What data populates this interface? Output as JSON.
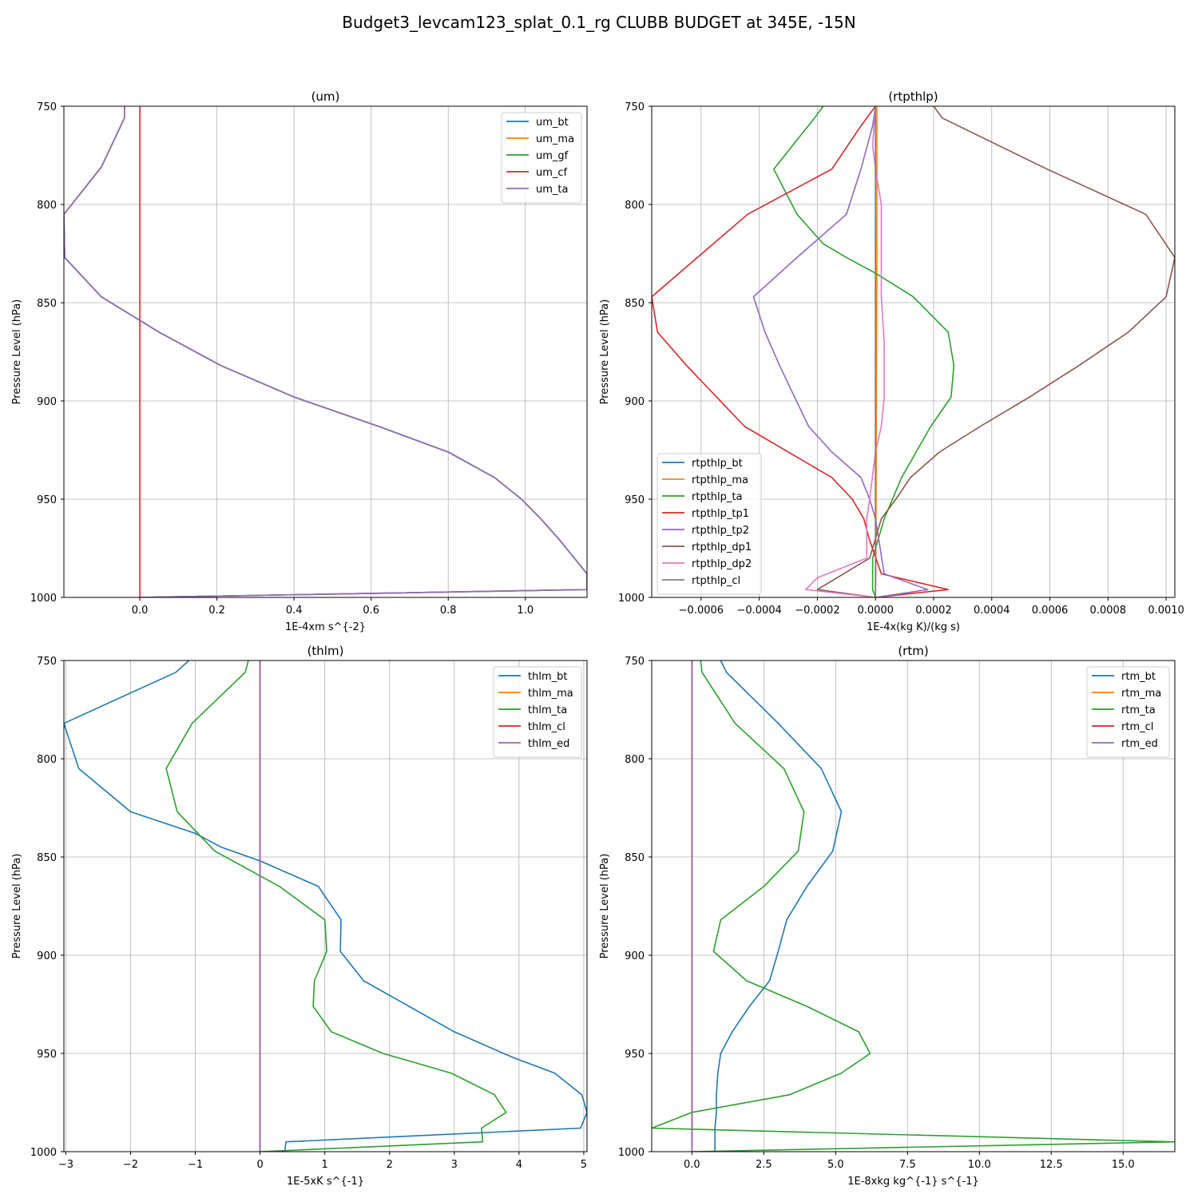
{
  "figure_title": "Budget3_levcam123_splat_0.1_rg CLUBB BUDGET at 345E, -15N",
  "colors": {
    "blue": "#1f77b4",
    "orange": "#ff7f0e",
    "green": "#2ca02c",
    "red": "#d62728",
    "purple": "#9467bd",
    "brown": "#8c564b",
    "pink": "#e377c2",
    "gray": "#7f7f7f"
  },
  "chart_data": [
    {
      "type": "line",
      "title": "(um)",
      "xlabel": "1E-4xm s^{-2}",
      "ylabel": "Pressure Level (hPa)",
      "xlim": [
        -0.197,
        1.16
      ],
      "ylim": [
        1000,
        750
      ],
      "xticks": [
        0.0,
        0.2,
        0.4,
        0.6,
        0.8,
        1.0
      ],
      "xtick_labels": [
        "0.0",
        "0.2",
        "0.4",
        "0.6",
        "0.8",
        "1.0"
      ],
      "yticks": [
        750,
        800,
        850,
        900,
        950,
        1000
      ],
      "ytick_labels": [
        "750",
        "800",
        "850",
        "900",
        "950",
        "1000"
      ],
      "grid": true,
      "legend_position": "upper right",
      "series": [
        {
          "name": "um_bt",
          "color": "#1f77b4",
          "x": [
            -0.04,
            -0.04,
            -0.1,
            -0.197,
            -0.195,
            -0.1,
            0.05,
            0.21,
            0.4,
            0.62,
            0.8,
            0.92,
            0.99,
            1.04,
            1.09,
            1.16,
            1.16,
            0.0
          ],
          "y": [
            750,
            756,
            781,
            805,
            827,
            847,
            865,
            882,
            898,
            913,
            926,
            939,
            950,
            960,
            971,
            988,
            996,
            1000
          ]
        },
        {
          "name": "um_ma",
          "color": "#ff7f0e",
          "x": [
            -0.04,
            -0.04,
            -0.1,
            -0.197,
            -0.195,
            -0.1,
            0.05,
            0.21,
            0.4,
            0.62,
            0.8,
            0.92,
            0.99,
            1.04,
            1.09,
            1.16,
            1.16,
            0.0
          ],
          "y": [
            750,
            756,
            781,
            805,
            827,
            847,
            865,
            882,
            898,
            913,
            926,
            939,
            950,
            960,
            971,
            988,
            996,
            1000
          ]
        },
        {
          "name": "um_gf",
          "color": "#2ca02c",
          "x": [
            -0.04,
            -0.04,
            -0.1,
            -0.197,
            -0.195,
            -0.1,
            0.05,
            0.21,
            0.4,
            0.62,
            0.8,
            0.92,
            0.99,
            1.04,
            1.09,
            1.16,
            1.16,
            0.0
          ],
          "y": [
            750,
            756,
            781,
            805,
            827,
            847,
            865,
            882,
            898,
            913,
            926,
            939,
            950,
            960,
            971,
            988,
            996,
            1000
          ]
        },
        {
          "name": "um_cf",
          "color": "#d62728",
          "x": [
            0.0,
            0.0
          ],
          "y": [
            750,
            1000
          ]
        },
        {
          "name": "um_ta",
          "color": "#9467bd",
          "x": [
            -0.04,
            -0.04,
            -0.1,
            -0.197,
            -0.195,
            -0.1,
            0.05,
            0.21,
            0.4,
            0.62,
            0.8,
            0.92,
            0.99,
            1.04,
            1.09,
            1.16,
            1.16,
            0.0
          ],
          "y": [
            750,
            756,
            781,
            805,
            827,
            847,
            865,
            882,
            898,
            913,
            926,
            939,
            950,
            960,
            971,
            988,
            996,
            1000
          ]
        }
      ]
    },
    {
      "type": "line",
      "title": "(rtpthlp)",
      "xlabel": "1E-4x(kg K)/(kg s)",
      "ylabel": "Pressure Level (hPa)",
      "xlim": [
        -0.00077,
        0.00103
      ],
      "ylim": [
        1000,
        750
      ],
      "xticks": [
        -0.0006,
        -0.0004,
        -0.0002,
        0.0,
        0.0002,
        0.0004,
        0.0006,
        0.0008,
        0.001
      ],
      "xtick_labels": [
        "−0.0006",
        "−0.0004",
        "−0.0002",
        "0.0000",
        "0.0002",
        "0.0004",
        "0.0006",
        "0.0008",
        "0.0010"
      ],
      "yticks": [
        750,
        800,
        850,
        900,
        950,
        1000
      ],
      "ytick_labels": [
        "750",
        "800",
        "850",
        "900",
        "950",
        "1000"
      ],
      "grid": true,
      "legend_position": "lower left",
      "series": [
        {
          "name": "rtpthlp_bt",
          "color": "#1f77b4",
          "x": [
            0.0,
            0.0,
            0.0,
            0.0,
            0.0,
            0.0,
            0.0
          ],
          "y": [
            750,
            800,
            850,
            900,
            950,
            990,
            1000
          ]
        },
        {
          "name": "rtpthlp_ma",
          "color": "#ff7f0e",
          "x": [
            5e-06,
            5e-06,
            4e-06,
            3e-06,
            2e-06,
            1e-06,
            0.0
          ],
          "y": [
            750,
            800,
            850,
            900,
            950,
            990,
            1000
          ]
        },
        {
          "name": "rtpthlp_ta",
          "color": "#2ca02c",
          "x": [
            -0.00018,
            -0.00021,
            -0.00035,
            -0.00027,
            -0.00018,
            -0.0001,
            0.0,
            0.00013,
            0.00025,
            0.00027,
            0.00026,
            0.00019,
            9e-05,
            3e-05,
            -1e-05,
            -1e-05,
            0.0
          ],
          "y": [
            750,
            756,
            782,
            805,
            820,
            827,
            835,
            847,
            865,
            882,
            898,
            913,
            939,
            960,
            980,
            996,
            1000
          ]
        },
        {
          "name": "rtpthlp_tp1",
          "color": "#d62728",
          "x": [
            0.0,
            -5e-05,
            -0.00015,
            -0.00044,
            -0.00077,
            -0.00075,
            -0.00065,
            -0.00045,
            -0.00015,
            -8e-05,
            -4e-05,
            -2e-05,
            2e-05,
            0.00025,
            0.0
          ],
          "y": [
            750,
            760,
            782,
            805,
            847,
            865,
            882,
            913,
            939,
            950,
            960,
            971,
            988,
            996,
            1000
          ]
        },
        {
          "name": "rtpthlp_tp2",
          "color": "#9467bd",
          "x": [
            0.0,
            -1e-05,
            -5e-05,
            -0.0001,
            -0.00027,
            -0.00042,
            -0.00038,
            -0.00033,
            -0.00023,
            -0.00015,
            -5e-05,
            -2e-05,
            0.0,
            3e-05,
            0.00018,
            0.0
          ],
          "y": [
            750,
            760,
            782,
            805,
            827,
            847,
            865,
            882,
            913,
            926,
            939,
            950,
            960,
            988,
            996,
            1000
          ]
        },
        {
          "name": "rtpthlp_dp1",
          "color": "#8c564b",
          "x": [
            0.0002,
            0.00023,
            0.00059,
            0.00093,
            0.00103,
            0.001,
            0.00087,
            0.0007,
            0.00053,
            0.00036,
            0.00022,
            0.00012,
            7e-05,
            2e-05,
            -2e-05,
            -0.0002,
            0.0
          ],
          "y": [
            750,
            756,
            782,
            805,
            827,
            847,
            865,
            882,
            898,
            913,
            926,
            939,
            950,
            960,
            980,
            996,
            1000
          ]
        },
        {
          "name": "rtpthlp_dp2",
          "color": "#e377c2",
          "x": [
            0.0,
            -1e-05,
            0.0,
            2e-05,
            2e-05,
            2e-05,
            3e-05,
            3e-05,
            2e-05,
            0.0,
            -2e-05,
            -3e-05,
            -3e-05,
            -0.0002,
            -0.00024,
            0.0
          ],
          "y": [
            750,
            770,
            782,
            800,
            830,
            847,
            870,
            898,
            913,
            926,
            950,
            960,
            980,
            990,
            996,
            1000
          ]
        },
        {
          "name": "rtpthlp_cl",
          "color": "#7f7f7f",
          "x": [
            0.0,
            0.0,
            0.0,
            0.0,
            0.0,
            0.0
          ],
          "y": [
            750,
            800,
            850,
            900,
            950,
            1000
          ]
        }
      ]
    },
    {
      "type": "line",
      "title": "(thlm)",
      "xlabel": "1E-5xK s^{-1}",
      "ylabel": "Pressure Level (hPa)",
      "xlim": [
        -3.03,
        5.05
      ],
      "ylim": [
        1000,
        750
      ],
      "xticks": [
        -3,
        -2,
        -1,
        0,
        1,
        2,
        3,
        4,
        5
      ],
      "xtick_labels": [
        "−3",
        "−2",
        "−1",
        "0",
        "1",
        "2",
        "3",
        "4",
        "5"
      ],
      "yticks": [
        750,
        800,
        850,
        900,
        950,
        1000
      ],
      "ytick_labels": [
        "750",
        "800",
        "850",
        "900",
        "950",
        "1000"
      ],
      "grid": true,
      "legend_position": "upper right",
      "series": [
        {
          "name": "thlm_bt",
          "color": "#1f77b4",
          "x": [
            -1.1,
            -1.3,
            -3.03,
            -2.8,
            -2.0,
            -1.0,
            -0.6,
            0.0,
            0.9,
            1.25,
            1.24,
            1.6,
            2.3,
            3.0,
            3.9,
            4.55,
            4.97,
            5.05,
            4.95,
            0.4,
            0.38
          ],
          "y": [
            750,
            756,
            782,
            805,
            827,
            838,
            845,
            852,
            865,
            882,
            898,
            913,
            926,
            939,
            952,
            960,
            971,
            980,
            988,
            995,
            1000
          ]
        },
        {
          "name": "thlm_ma",
          "color": "#ff7f0e",
          "x": [
            0.0,
            0.0
          ],
          "y": [
            750,
            1000
          ]
        },
        {
          "name": "thlm_ta",
          "color": "#2ca02c",
          "x": [
            -0.18,
            -0.23,
            -1.05,
            -1.45,
            -1.28,
            -0.7,
            0.3,
            1.0,
            1.03,
            0.84,
            0.82,
            1.1,
            1.9,
            2.95,
            3.62,
            3.8,
            3.42,
            3.44,
            0.0
          ],
          "y": [
            750,
            756,
            782,
            805,
            827,
            847,
            865,
            882,
            898,
            913,
            926,
            939,
            950,
            960,
            971,
            980,
            988,
            995,
            1000
          ]
        },
        {
          "name": "thlm_cl",
          "color": "#d62728",
          "x": [
            0.0,
            0.0
          ],
          "y": [
            750,
            1000
          ]
        },
        {
          "name": "thlm_ed",
          "color": "#9467bd",
          "x": [
            0.0,
            0.0
          ],
          "y": [
            750,
            1000
          ]
        }
      ]
    },
    {
      "type": "line",
      "title": "(rtm)",
      "xlabel": "1E-8xkg kg^{-1} s^{-1}",
      "ylabel": "Pressure Level (hPa)",
      "xlim": [
        -1.4,
        16.8
      ],
      "ylim": [
        1000,
        750
      ],
      "xticks": [
        0.0,
        2.5,
        5.0,
        7.5,
        10.0,
        12.5,
        15.0
      ],
      "xtick_labels": [
        "0.0",
        "2.5",
        "5.0",
        "7.5",
        "10.0",
        "12.5",
        "15.0"
      ],
      "yticks": [
        750,
        800,
        850,
        900,
        950,
        1000
      ],
      "ytick_labels": [
        "750",
        "800",
        "850",
        "900",
        "950",
        "1000"
      ],
      "grid": true,
      "legend_position": "upper right",
      "series": [
        {
          "name": "rtm_bt",
          "color": "#1f77b4",
          "x": [
            1.0,
            1.2,
            3.0,
            4.5,
            5.2,
            4.9,
            4.0,
            3.3,
            3.0,
            2.7,
            2.0,
            1.4,
            1.0,
            0.9,
            0.85,
            0.85,
            0.8,
            0.8
          ],
          "y": [
            750,
            756,
            782,
            805,
            827,
            847,
            865,
            882,
            898,
            913,
            926,
            939,
            950,
            960,
            971,
            980,
            988,
            1000
          ]
        },
        {
          "name": "rtm_ma",
          "color": "#ff7f0e",
          "x": [
            0.0,
            0.0
          ],
          "y": [
            750,
            1000
          ]
        },
        {
          "name": "rtm_ta",
          "color": "#2ca02c",
          "x": [
            0.3,
            0.35,
            1.5,
            3.2,
            3.9,
            3.7,
            2.5,
            1.0,
            0.75,
            1.9,
            4.0,
            5.8,
            6.2,
            5.2,
            3.4,
            0.0,
            -1.4,
            16.8,
            0.0
          ],
          "y": [
            750,
            756,
            782,
            805,
            827,
            847,
            865,
            882,
            898,
            913,
            926,
            939,
            950,
            960,
            971,
            980,
            988,
            995,
            1000
          ]
        },
        {
          "name": "rtm_cl",
          "color": "#d62728",
          "x": [
            0.0,
            0.0
          ],
          "y": [
            750,
            1000
          ]
        },
        {
          "name": "rtm_ed",
          "color": "#9467bd",
          "x": [
            0.0,
            0.0
          ],
          "y": [
            750,
            1000
          ]
        }
      ]
    }
  ]
}
